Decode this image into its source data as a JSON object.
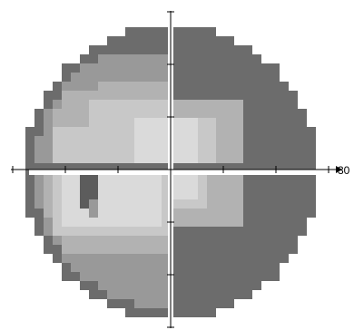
{
  "chart_data": {
    "type": "heatmap",
    "title": "",
    "scale_label": "30",
    "grid": {
      "cols": 32,
      "rows": 32,
      "cell_size_deg": 2
    },
    "gray_levels": {
      "0": "#6c6c6c",
      "1": "#999999",
      "2": "#b2b2b2",
      "3": "#c8c8c8",
      "4": "#dadada",
      "5": "#5c5c5c"
    },
    "colors": {
      "background": "#ffffff",
      "axis": "#000000",
      "divider": "#ffffff"
    }
  }
}
